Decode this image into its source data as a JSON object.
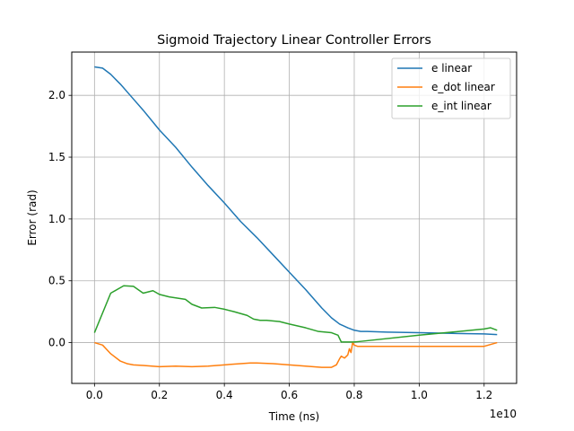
{
  "chart_data": {
    "type": "line",
    "title": "Sigmoid Trajectory Linear Controller Errors",
    "xlabel": "Time (ns)",
    "ylabel": "Error (rad)",
    "x_offset_label": "1e10",
    "x_scale_factor": 10000000000,
    "xlim": [
      -0.07,
      1.3
    ],
    "ylim": [
      -0.33,
      2.35
    ],
    "x_ticks": [
      0.0,
      0.2,
      0.4,
      0.6,
      0.8,
      1.0,
      1.2
    ],
    "x_tick_labels": [
      "0.0",
      "0.2",
      "0.4",
      "0.6",
      "0.8",
      "1.0",
      "1.2"
    ],
    "y_ticks": [
      0.0,
      0.5,
      1.0,
      1.5,
      2.0
    ],
    "y_tick_labels": [
      "0.0",
      "0.5",
      "1.0",
      "1.5",
      "2.0"
    ],
    "grid": true,
    "legend_position": "top-right",
    "series": [
      {
        "name": "e linear",
        "color": "#1f77b4",
        "x": [
          0.0,
          0.025,
          0.05,
          0.08,
          0.11,
          0.15,
          0.2,
          0.25,
          0.3,
          0.35,
          0.4,
          0.45,
          0.5,
          0.55,
          0.6,
          0.65,
          0.7,
          0.73,
          0.755,
          0.78,
          0.8,
          0.82,
          0.84,
          0.9,
          1.0,
          1.1,
          1.2,
          1.24
        ],
        "y": [
          2.23,
          2.22,
          2.17,
          2.09,
          2.0,
          1.88,
          1.72,
          1.58,
          1.42,
          1.27,
          1.13,
          0.98,
          0.85,
          0.71,
          0.57,
          0.43,
          0.28,
          0.2,
          0.15,
          0.12,
          0.1,
          0.09,
          0.09,
          0.085,
          0.08,
          0.075,
          0.07,
          0.065
        ]
      },
      {
        "name": "e_dot linear",
        "color": "#ff7f0e",
        "x": [
          0.0,
          0.025,
          0.05,
          0.08,
          0.1,
          0.12,
          0.15,
          0.2,
          0.25,
          0.3,
          0.35,
          0.4,
          0.45,
          0.48,
          0.5,
          0.55,
          0.6,
          0.65,
          0.7,
          0.73,
          0.745,
          0.755,
          0.76,
          0.77,
          0.78,
          0.785,
          0.79,
          0.795,
          0.8,
          0.81,
          0.84,
          1.0,
          1.2,
          1.24
        ],
        "y": [
          0.0,
          -0.02,
          -0.09,
          -0.15,
          -0.17,
          -0.18,
          -0.185,
          -0.195,
          -0.19,
          -0.195,
          -0.19,
          -0.18,
          -0.17,
          -0.165,
          -0.165,
          -0.17,
          -0.18,
          -0.19,
          -0.2,
          -0.2,
          -0.18,
          -0.13,
          -0.11,
          -0.125,
          -0.1,
          -0.05,
          -0.08,
          0.0,
          -0.02,
          -0.03,
          -0.03,
          -0.03,
          -0.03,
          0.0
        ]
      },
      {
        "name": "e_int linear",
        "color": "#2ca02c",
        "x": [
          0.0,
          0.05,
          0.09,
          0.12,
          0.15,
          0.18,
          0.2,
          0.23,
          0.28,
          0.3,
          0.33,
          0.37,
          0.4,
          0.43,
          0.47,
          0.49,
          0.51,
          0.53,
          0.57,
          0.6,
          0.65,
          0.69,
          0.73,
          0.75,
          0.76,
          0.8,
          0.82,
          1.0,
          1.1,
          1.2,
          1.22,
          1.24
        ],
        "y": [
          0.08,
          0.4,
          0.46,
          0.455,
          0.4,
          0.42,
          0.39,
          0.37,
          0.35,
          0.31,
          0.28,
          0.285,
          0.27,
          0.25,
          0.22,
          0.19,
          0.18,
          0.18,
          0.17,
          0.15,
          0.12,
          0.09,
          0.08,
          0.06,
          0.005,
          0.005,
          0.01,
          0.06,
          0.085,
          0.11,
          0.12,
          0.1
        ]
      }
    ]
  }
}
